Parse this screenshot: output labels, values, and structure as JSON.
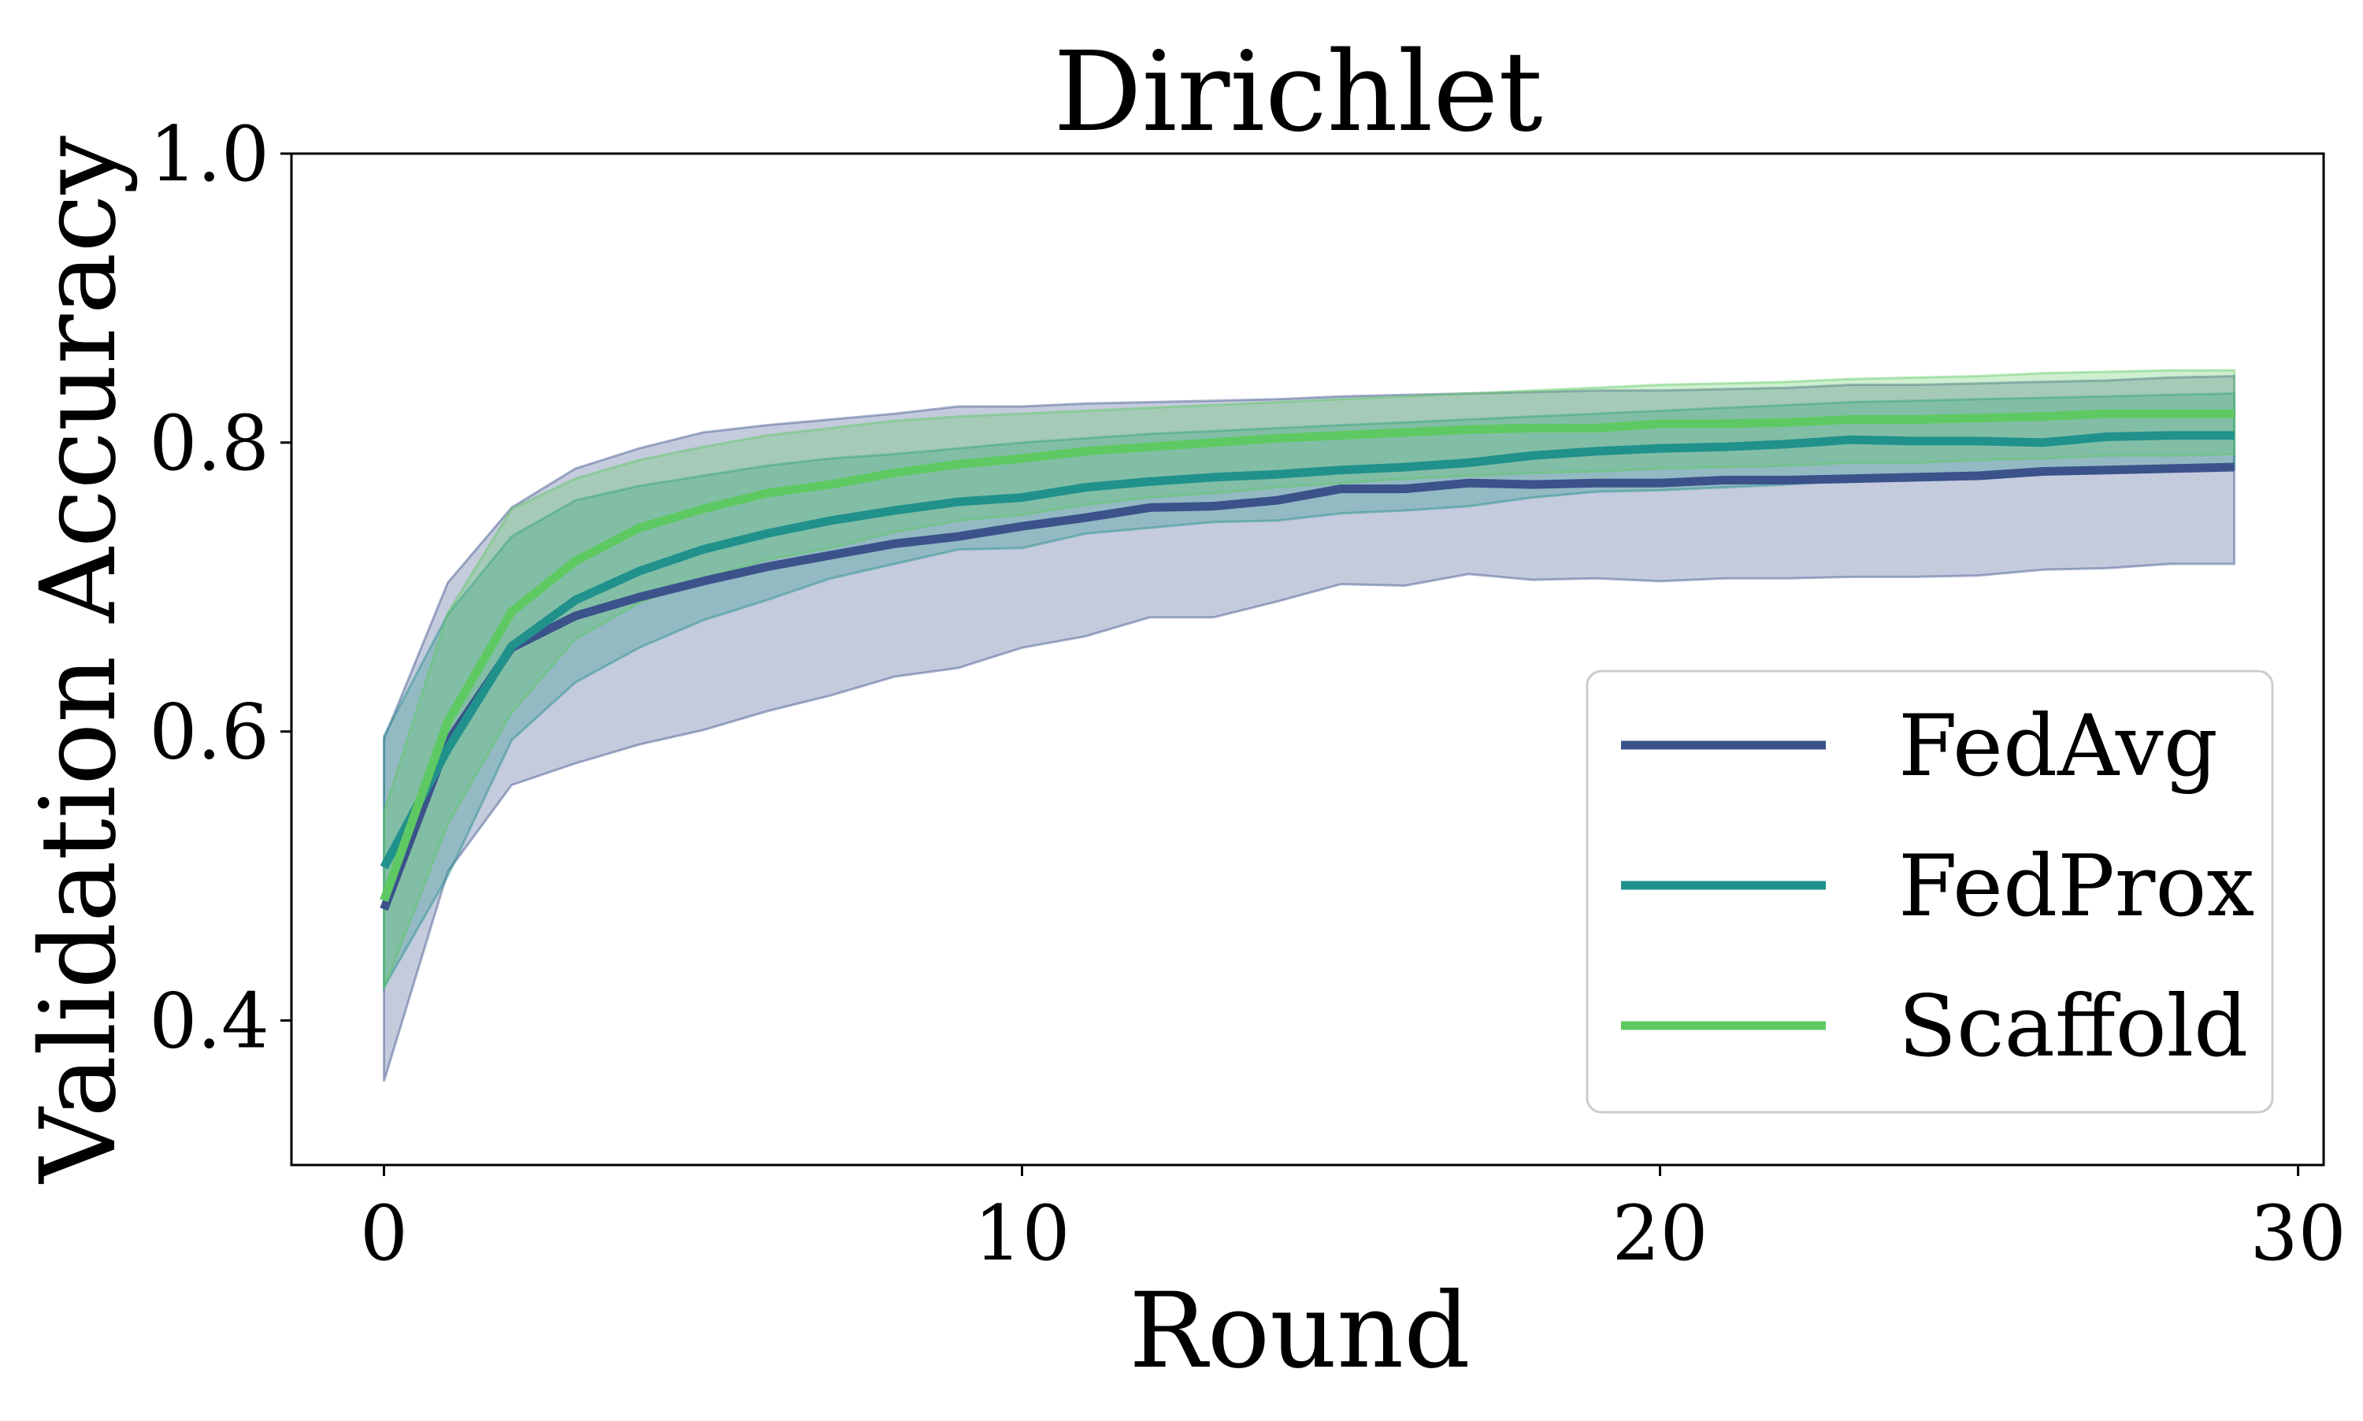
{
  "chart_data": {
    "type": "line",
    "title": "Dirichlet",
    "xlabel": "Round",
    "ylabel": "Validation Accuracy",
    "xlim": [
      -1.45,
      30.4
    ],
    "ylim": [
      0.3,
      1.0
    ],
    "xticks": [
      0,
      10,
      20,
      30
    ],
    "xtick_labels": [
      "0",
      "10",
      "20",
      "30"
    ],
    "yticks": [
      0.4,
      0.6,
      0.8,
      1.0
    ],
    "ytick_labels": [
      "0.4",
      "0.6",
      "0.8",
      "1.0"
    ],
    "grid": false,
    "legend_position": "lower-right",
    "x": [
      0,
      1,
      2,
      3,
      4,
      5,
      6,
      7,
      8,
      9,
      10,
      11,
      12,
      13,
      14,
      15,
      16,
      17,
      18,
      19,
      20,
      21,
      22,
      23,
      24,
      25,
      26,
      27,
      28,
      29
    ],
    "series": [
      {
        "name": "FedAvg",
        "color": "#3b528b",
        "mean": [
          0.477,
          0.593,
          0.658,
          0.68,
          0.693,
          0.704,
          0.714,
          0.722,
          0.73,
          0.735,
          0.742,
          0.748,
          0.755,
          0.756,
          0.76,
          0.768,
          0.768,
          0.772,
          0.771,
          0.772,
          0.772,
          0.774,
          0.774,
          0.775,
          0.776,
          0.777,
          0.78,
          0.781,
          0.782,
          0.783
        ],
        "lower": [
          0.358,
          0.503,
          0.563,
          0.578,
          0.591,
          0.601,
          0.614,
          0.625,
          0.638,
          0.644,
          0.658,
          0.666,
          0.679,
          0.679,
          0.69,
          0.702,
          0.701,
          0.709,
          0.705,
          0.706,
          0.704,
          0.706,
          0.706,
          0.707,
          0.707,
          0.708,
          0.712,
          0.713,
          0.716,
          0.716
        ],
        "upper": [
          0.595,
          0.703,
          0.755,
          0.782,
          0.796,
          0.807,
          0.812,
          0.816,
          0.82,
          0.825,
          0.825,
          0.827,
          0.828,
          0.829,
          0.83,
          0.832,
          0.833,
          0.834,
          0.835,
          0.836,
          0.836,
          0.837,
          0.838,
          0.84,
          0.84,
          0.841,
          0.842,
          0.843,
          0.845,
          0.846
        ]
      },
      {
        "name": "FedProx",
        "color": "#21918c",
        "mean": [
          0.506,
          0.588,
          0.659,
          0.691,
          0.711,
          0.726,
          0.737,
          0.746,
          0.753,
          0.759,
          0.762,
          0.769,
          0.773,
          0.776,
          0.778,
          0.781,
          0.783,
          0.786,
          0.791,
          0.794,
          0.796,
          0.797,
          0.799,
          0.802,
          0.801,
          0.801,
          0.8,
          0.804,
          0.805,
          0.805
        ],
        "lower": [
          0.423,
          0.5,
          0.594,
          0.634,
          0.658,
          0.677,
          0.691,
          0.706,
          0.716,
          0.726,
          0.727,
          0.737,
          0.741,
          0.745,
          0.746,
          0.751,
          0.753,
          0.756,
          0.762,
          0.766,
          0.767,
          0.769,
          0.771,
          0.774,
          0.775,
          0.776,
          0.778,
          0.78,
          0.781,
          0.782
        ],
        "upper": [
          0.597,
          0.681,
          0.735,
          0.76,
          0.77,
          0.777,
          0.784,
          0.789,
          0.792,
          0.796,
          0.8,
          0.803,
          0.806,
          0.808,
          0.81,
          0.812,
          0.814,
          0.816,
          0.818,
          0.82,
          0.822,
          0.824,
          0.826,
          0.828,
          0.829,
          0.83,
          0.831,
          0.832,
          0.833,
          0.834
        ]
      },
      {
        "name": "Scaffold",
        "color": "#5ec962",
        "mean": [
          0.483,
          0.607,
          0.683,
          0.718,
          0.741,
          0.754,
          0.765,
          0.771,
          0.779,
          0.785,
          0.789,
          0.794,
          0.797,
          0.8,
          0.803,
          0.805,
          0.807,
          0.809,
          0.81,
          0.81,
          0.813,
          0.813,
          0.814,
          0.816,
          0.816,
          0.817,
          0.818,
          0.82,
          0.82,
          0.82
        ],
        "lower": [
          0.422,
          0.536,
          0.613,
          0.664,
          0.689,
          0.706,
          0.719,
          0.727,
          0.738,
          0.746,
          0.75,
          0.757,
          0.762,
          0.765,
          0.769,
          0.772,
          0.775,
          0.777,
          0.779,
          0.78,
          0.782,
          0.783,
          0.784,
          0.786,
          0.786,
          0.788,
          0.789,
          0.791,
          0.791,
          0.792
        ],
        "upper": [
          0.544,
          0.682,
          0.754,
          0.775,
          0.788,
          0.797,
          0.805,
          0.81,
          0.815,
          0.818,
          0.82,
          0.822,
          0.824,
          0.826,
          0.828,
          0.83,
          0.832,
          0.834,
          0.836,
          0.838,
          0.84,
          0.841,
          0.842,
          0.844,
          0.845,
          0.846,
          0.848,
          0.849,
          0.85,
          0.85
        ]
      }
    ]
  }
}
